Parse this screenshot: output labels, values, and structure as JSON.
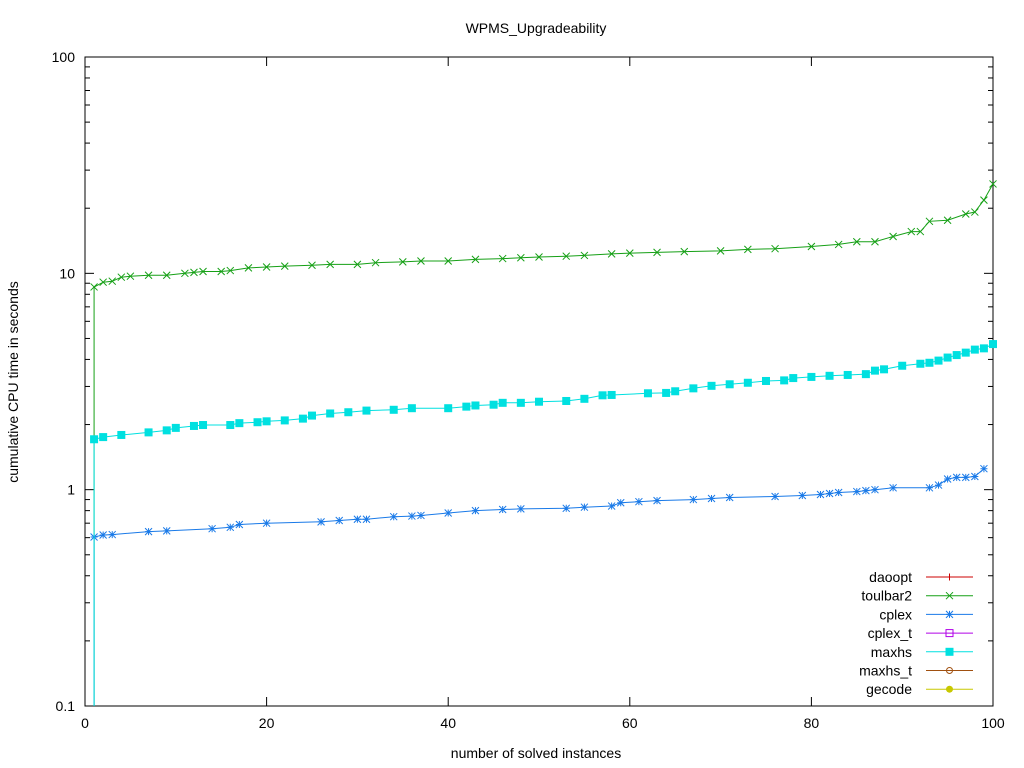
{
  "chart_data": {
    "type": "line",
    "title": "WPMS_Upgradeability",
    "xlabel": "number of solved instances",
    "ylabel": "cumulative CPU time in seconds",
    "xlim": [
      0,
      100
    ],
    "ylim": [
      0.1,
      100
    ],
    "yscale": "log",
    "grid": false,
    "legend_position": "bottom-right",
    "xticks": [
      0,
      20,
      40,
      60,
      80,
      100
    ],
    "xtick_labels": [
      "0",
      "20",
      "40",
      "60",
      "80",
      "100"
    ],
    "yticks": [
      0.1,
      1,
      10,
      100
    ],
    "ytick_labels": [
      "0.1",
      "1",
      "10",
      "100"
    ],
    "series": [
      {
        "name": "daoopt",
        "color": "#cc0000",
        "marker": "plus",
        "points": []
      },
      {
        "name": "toulbar2",
        "color": "#16a016",
        "marker": "cross",
        "points": [
          [
            1,
            8.65
          ],
          [
            2,
            9.1
          ],
          [
            3,
            9.2
          ],
          [
            4,
            9.6
          ],
          [
            5,
            9.7
          ],
          [
            7,
            9.8
          ],
          [
            9,
            9.8
          ],
          [
            11,
            10.0
          ],
          [
            12,
            10.1
          ],
          [
            13,
            10.2
          ],
          [
            15,
            10.2
          ],
          [
            16,
            10.3
          ],
          [
            18,
            10.6
          ],
          [
            20,
            10.7
          ],
          [
            22,
            10.8
          ],
          [
            25,
            10.9
          ],
          [
            27,
            11.0
          ],
          [
            30,
            11.0
          ],
          [
            32,
            11.2
          ],
          [
            35,
            11.3
          ],
          [
            37,
            11.4
          ],
          [
            40,
            11.4
          ],
          [
            43,
            11.6
          ],
          [
            46,
            11.7
          ],
          [
            48,
            11.8
          ],
          [
            50,
            11.9
          ],
          [
            53,
            12.0
          ],
          [
            55,
            12.1
          ],
          [
            58,
            12.3
          ],
          [
            60,
            12.4
          ],
          [
            63,
            12.5
          ],
          [
            66,
            12.6
          ],
          [
            70,
            12.7
          ],
          [
            73,
            12.9
          ],
          [
            76,
            13.0
          ],
          [
            80,
            13.3
          ],
          [
            83,
            13.6
          ],
          [
            85,
            14.0
          ],
          [
            87,
            14.0
          ],
          [
            89,
            14.8
          ],
          [
            91,
            15.6
          ],
          [
            92,
            15.6
          ],
          [
            93,
            17.4
          ],
          [
            95,
            17.6
          ],
          [
            97,
            18.8
          ],
          [
            98,
            19.2
          ],
          [
            99,
            21.8
          ],
          [
            100,
            25.9
          ]
        ]
      },
      {
        "name": "cplex",
        "color": "#1a7ae8",
        "marker": "star",
        "points": [
          [
            1,
            0.604
          ],
          [
            2,
            0.617
          ],
          [
            3,
            0.62
          ],
          [
            7,
            0.64
          ],
          [
            9,
            0.645
          ],
          [
            14,
            0.66
          ],
          [
            16,
            0.67
          ],
          [
            17,
            0.69
          ],
          [
            20,
            0.7
          ],
          [
            26,
            0.71
          ],
          [
            28,
            0.72
          ],
          [
            30,
            0.73
          ],
          [
            31,
            0.73
          ],
          [
            34,
            0.75
          ],
          [
            36,
            0.755
          ],
          [
            37,
            0.76
          ],
          [
            40,
            0.78
          ],
          [
            43,
            0.8
          ],
          [
            46,
            0.81
          ],
          [
            48,
            0.815
          ],
          [
            53,
            0.82
          ],
          [
            55,
            0.83
          ],
          [
            58,
            0.84
          ],
          [
            59,
            0.87
          ],
          [
            61,
            0.88
          ],
          [
            63,
            0.89
          ],
          [
            67,
            0.9
          ],
          [
            69,
            0.91
          ],
          [
            71,
            0.92
          ],
          [
            76,
            0.93
          ],
          [
            79,
            0.94
          ],
          [
            81,
            0.95
          ],
          [
            82,
            0.96
          ],
          [
            83,
            0.97
          ],
          [
            85,
            0.98
          ],
          [
            86,
            0.99
          ],
          [
            87,
            1.0
          ],
          [
            89,
            1.02
          ],
          [
            93,
            1.02
          ],
          [
            94,
            1.05
          ],
          [
            95,
            1.12
          ],
          [
            96,
            1.14
          ],
          [
            97,
            1.14
          ],
          [
            98,
            1.15
          ],
          [
            99,
            1.25
          ]
        ]
      },
      {
        "name": "cplex_t",
        "color": "#b000e8",
        "marker": "open-square",
        "points": []
      },
      {
        "name": "maxhs",
        "color": "#00e0e0",
        "marker": "filled-square",
        "points": [
          [
            1,
            1.71
          ],
          [
            2,
            1.75
          ],
          [
            4,
            1.79
          ],
          [
            7,
            1.84
          ],
          [
            9,
            1.88
          ],
          [
            10,
            1.93
          ],
          [
            12,
            1.97
          ],
          [
            13,
            1.99
          ],
          [
            16,
            1.99
          ],
          [
            17,
            2.03
          ],
          [
            19,
            2.05
          ],
          [
            20,
            2.07
          ],
          [
            22,
            2.09
          ],
          [
            24,
            2.13
          ],
          [
            25,
            2.2
          ],
          [
            27,
            2.25
          ],
          [
            29,
            2.28
          ],
          [
            31,
            2.32
          ],
          [
            34,
            2.34
          ],
          [
            36,
            2.38
          ],
          [
            40,
            2.38
          ],
          [
            42,
            2.42
          ],
          [
            43,
            2.45
          ],
          [
            45,
            2.47
          ],
          [
            46,
            2.52
          ],
          [
            48,
            2.52
          ],
          [
            50,
            2.55
          ],
          [
            53,
            2.57
          ],
          [
            55,
            2.63
          ],
          [
            57,
            2.73
          ],
          [
            58,
            2.74
          ],
          [
            62,
            2.79
          ],
          [
            64,
            2.8
          ],
          [
            65,
            2.85
          ],
          [
            67,
            2.94
          ],
          [
            69,
            3.02
          ],
          [
            71,
            3.07
          ],
          [
            73,
            3.12
          ],
          [
            75,
            3.18
          ],
          [
            77,
            3.2
          ],
          [
            78,
            3.28
          ],
          [
            80,
            3.32
          ],
          [
            82,
            3.36
          ],
          [
            84,
            3.39
          ],
          [
            86,
            3.42
          ],
          [
            87,
            3.55
          ],
          [
            88,
            3.6
          ],
          [
            90,
            3.74
          ],
          [
            92,
            3.82
          ],
          [
            93,
            3.86
          ],
          [
            94,
            3.95
          ],
          [
            95,
            4.08
          ],
          [
            96,
            4.19
          ],
          [
            97,
            4.3
          ],
          [
            98,
            4.44
          ],
          [
            99,
            4.5
          ],
          [
            100,
            4.71
          ]
        ]
      },
      {
        "name": "maxhs_t",
        "color": "#a05010",
        "marker": "open-circle",
        "points": []
      },
      {
        "name": "gecode",
        "color": "#c8c800",
        "marker": "filled-circle",
        "points": []
      }
    ]
  }
}
